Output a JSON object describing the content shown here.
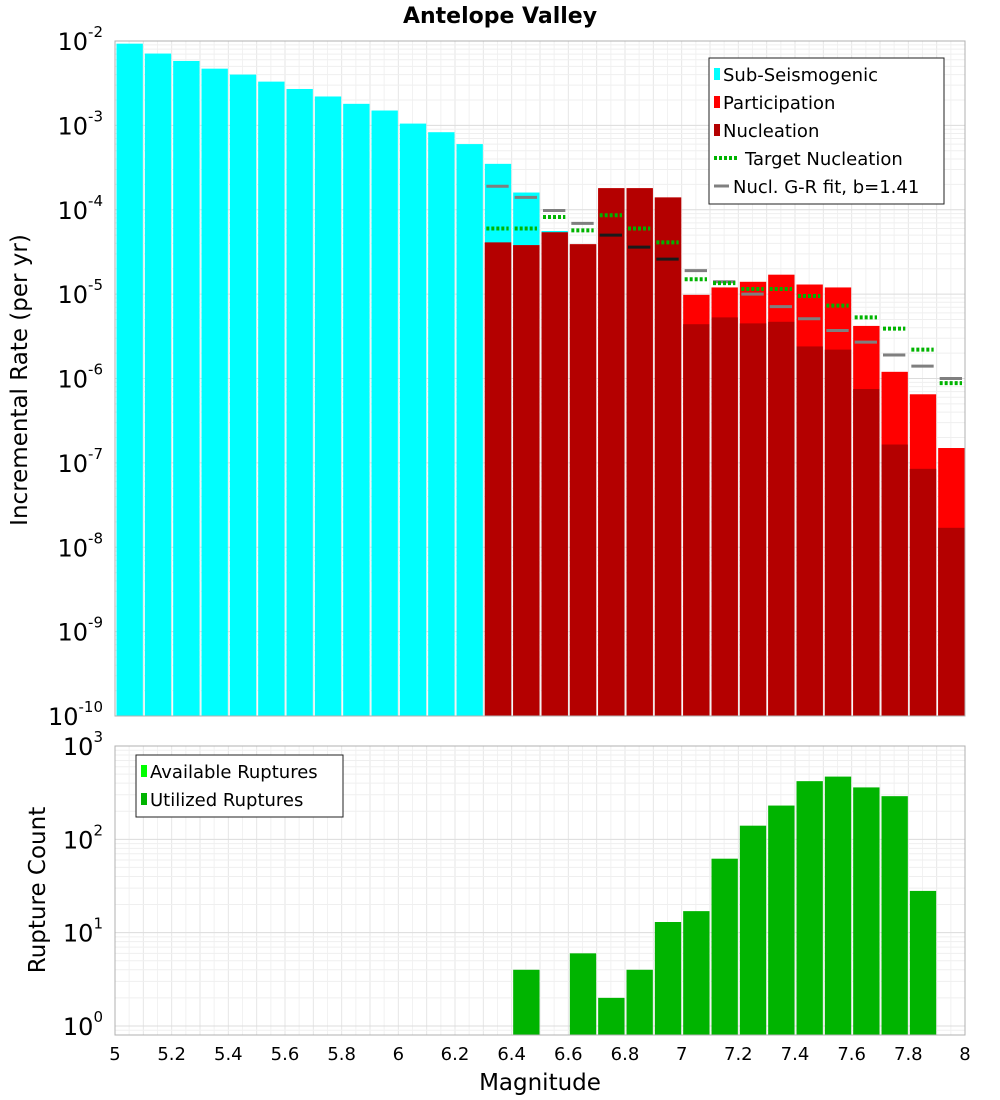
{
  "chart_data": [
    {
      "type": "bar",
      "title": "Antelope Valley",
      "xlabel": "",
      "ylabel": "Incremental Rate (per yr)",
      "yscale": "log",
      "ylim": [
        1e-10,
        0.01
      ],
      "xlim": [
        5,
        8
      ],
      "ytick_exponents": [
        "-10",
        "-9",
        "-8",
        "-7",
        "-6",
        "-5",
        "-4",
        "-3",
        "-2"
      ],
      "ytick_base": "10",
      "bin_width": 0.1,
      "legend_position": "top-right",
      "legend": [
        {
          "label": "Sub-Seismogenic",
          "color": "#00ffff",
          "kind": "box"
        },
        {
          "label": "Participation",
          "color": "#ff0000",
          "kind": "box"
        },
        {
          "label": "Nucleation",
          "color": "#b40000",
          "kind": "box"
        },
        {
          "label": "Target Nucleation",
          "color": "#00b400",
          "kind": "dotted"
        },
        {
          "label": "Nucl. G-R fit, b=1.41",
          "color": "#808080",
          "kind": "line"
        }
      ],
      "series": [
        {
          "name": "Sub-Seismogenic",
          "color": "#00ffff",
          "x": [
            5.05,
            5.15,
            5.25,
            5.35,
            5.45,
            5.55,
            5.65,
            5.75,
            5.85,
            5.95,
            6.05,
            6.15,
            6.25,
            6.35,
            6.45,
            6.55
          ],
          "values": [
            0.0093,
            0.0071,
            0.0058,
            0.0047,
            0.004,
            0.0033,
            0.0027,
            0.0022,
            0.0018,
            0.0015,
            0.00105,
            0.00083,
            0.0006,
            0.00035,
            0.00016,
            5.6e-05
          ]
        },
        {
          "name": "Participation",
          "color": "#ff0000",
          "x": [
            6.35,
            6.45,
            6.55,
            6.65,
            6.75,
            6.85,
            6.95,
            7.05,
            7.15,
            7.25,
            7.35,
            7.45,
            7.55,
            7.65,
            7.75,
            7.85,
            7.95
          ],
          "values": [
            4.1e-05,
            3.8e-05,
            5.4e-05,
            3.9e-05,
            0.00018,
            0.00018,
            0.00014,
            9.8e-06,
            1.2e-05,
            1.4e-05,
            1.7e-05,
            1.3e-05,
            1.2e-05,
            4.2e-06,
            1.2e-06,
            6.5e-07,
            1.5e-07
          ]
        },
        {
          "name": "Nucleation",
          "color": "#b40000",
          "x": [
            6.35,
            6.45,
            6.55,
            6.65,
            6.75,
            6.85,
            6.95,
            7.05,
            7.15,
            7.25,
            7.35,
            7.45,
            7.55,
            7.65,
            7.75,
            7.85,
            7.95
          ],
          "values": [
            4.1e-05,
            3.8e-05,
            5.4e-05,
            3.9e-05,
            0.00018,
            0.00018,
            0.00014,
            4.4e-06,
            5.3e-06,
            4.5e-06,
            4.7e-06,
            2.4e-06,
            2.2e-06,
            7.5e-07,
            1.65e-07,
            8.5e-08,
            1.7e-08
          ]
        },
        {
          "name": "Target Nucleation",
          "color": "#00b400",
          "x": [
            6.35,
            6.45,
            6.55,
            6.65,
            6.75,
            6.85,
            6.95,
            7.05,
            7.15,
            7.25,
            7.35,
            7.45,
            7.55,
            7.65,
            7.75,
            7.85,
            7.95
          ],
          "values": [
            6e-05,
            6e-05,
            8.2e-05,
            5.7e-05,
            8.6e-05,
            6e-05,
            4.1e-05,
            1.5e-05,
            1.35e-05,
            1.15e-05,
            1.15e-05,
            9.5e-06,
            7.3e-06,
            5.3e-06,
            3.9e-06,
            2.2e-06,
            8.8e-07
          ]
        },
        {
          "name": "Nucl. G-R fit, b=1.41",
          "color": "#808080",
          "x": [
            6.35,
            6.45,
            6.55,
            6.65,
            6.75,
            6.85,
            6.95,
            7.05,
            7.15,
            7.25,
            7.35,
            7.45,
            7.55,
            7.65,
            7.75,
            7.85,
            7.95
          ],
          "values": [
            0.00019,
            0.00014,
            9.8e-05,
            6.9e-05,
            5e-05,
            3.6e-05,
            2.6e-05,
            1.9e-05,
            1.4e-05,
            1e-05,
            7.1e-06,
            5.1e-06,
            3.7e-06,
            2.7e-06,
            1.9e-06,
            1.4e-06,
            1e-06
          ]
        }
      ]
    },
    {
      "type": "bar",
      "title": "",
      "xlabel": "Magnitude",
      "ylabel": "Rupture Count",
      "yscale": "log",
      "ylim": [
        0.8,
        1000
      ],
      "xlim": [
        5,
        8
      ],
      "xticks": [
        "5",
        "5.2",
        "5.4",
        "5.6",
        "5.8",
        "6",
        "6.2",
        "6.4",
        "6.6",
        "6.8",
        "7",
        "7.2",
        "7.4",
        "7.6",
        "7.8",
        "8"
      ],
      "ytick_exponents": [
        "0",
        "1",
        "2",
        "3"
      ],
      "ytick_base": "10",
      "bin_width": 0.1,
      "legend_position": "top-left",
      "legend": [
        {
          "label": "Available Ruptures",
          "color": "#00ff00",
          "kind": "box"
        },
        {
          "label": "Utilized Ruptures",
          "color": "#00b400",
          "kind": "box"
        }
      ],
      "series": [
        {
          "name": "Utilized Ruptures",
          "color": "#00b400",
          "x": [
            6.45,
            6.65,
            6.75,
            6.85,
            6.95,
            7.05,
            7.15,
            7.25,
            7.35,
            7.45,
            7.55,
            7.65,
            7.75,
            7.85
          ],
          "values": [
            4,
            6,
            2,
            4,
            13,
            17,
            62,
            140,
            230,
            420,
            470,
            360,
            290,
            28
          ]
        }
      ]
    }
  ]
}
